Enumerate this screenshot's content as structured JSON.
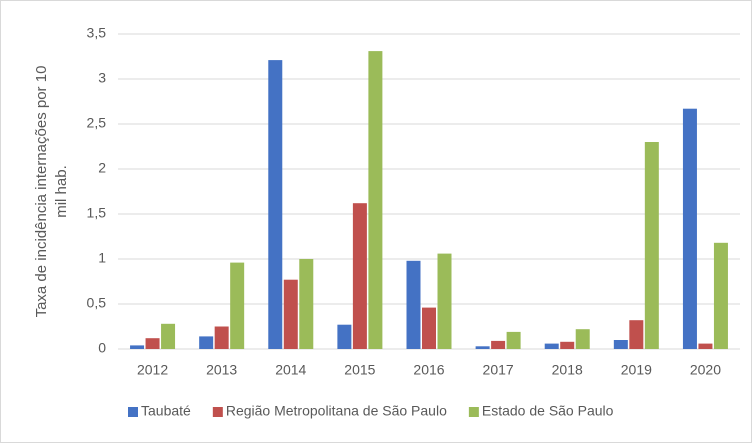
{
  "chart_data": {
    "type": "bar",
    "y_label": [
      "Taxa de incidência internações por 10",
      "mil hab."
    ],
    "categories": [
      "2012",
      "2013",
      "2014",
      "2015",
      "2016",
      "2017",
      "2018",
      "2019",
      "2020"
    ],
    "series": [
      {
        "name": "Taubaté",
        "color": "#4472c4",
        "values": [
          0.04,
          0.14,
          3.21,
          0.27,
          0.98,
          0.03,
          0.06,
          0.1,
          2.67
        ]
      },
      {
        "name": "Região Metropolitana de São Paulo",
        "color": "#c0504d",
        "values": [
          0.12,
          0.25,
          0.77,
          1.62,
          0.46,
          0.09,
          0.08,
          0.32,
          0.06
        ]
      },
      {
        "name": "Estado de São Paulo",
        "color": "#9bbb59",
        "values": [
          0.28,
          0.96,
          1.0,
          3.31,
          1.06,
          0.19,
          0.22,
          2.3,
          1.18
        ]
      }
    ],
    "ylim": [
      0,
      3.5
    ],
    "yticks": [
      0,
      {
        "value": 0.5,
        "label": "0,5"
      },
      1,
      {
        "value": 1.5,
        "label": "1,5"
      },
      2,
      {
        "value": 2.5,
        "label": "2,5"
      },
      3,
      {
        "value": 3.5,
        "label": "3,5"
      }
    ],
    "grid": true,
    "legend": "bottom"
  }
}
